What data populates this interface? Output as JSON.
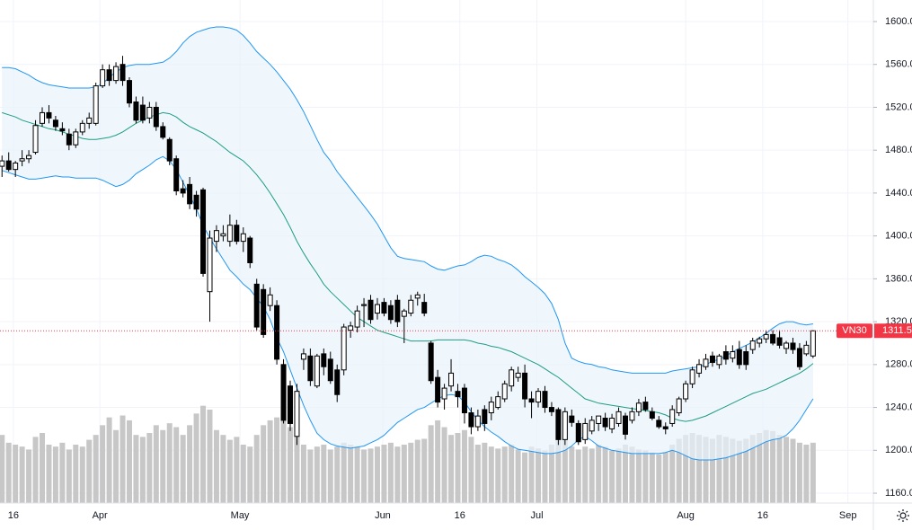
{
  "chart_data": {
    "type": "candlestick",
    "symbol": "VN30",
    "up_color": "#ffffff",
    "down_color": "#000000",
    "wick_color": "#000000",
    "volume_color": "#c7c7c7",
    "grid": true,
    "ylim": [
      1150.8,
      1620.1
    ],
    "yticks": [
      {
        "value": 1160,
        "label": "1160.0"
      },
      {
        "value": 1200,
        "label": "1200.0"
      },
      {
        "value": 1240,
        "label": "1240.0"
      },
      {
        "value": 1280,
        "label": "1280.0"
      },
      {
        "value": 1320,
        "label": "1320.0"
      },
      {
        "value": 1360,
        "label": "1360.0"
      },
      {
        "value": 1400,
        "label": "1400.0"
      },
      {
        "value": 1440,
        "label": "1440.0"
      },
      {
        "value": 1480,
        "label": "1480.0"
      },
      {
        "value": 1520,
        "label": "1520.0"
      },
      {
        "value": 1560,
        "label": "1560.0"
      },
      {
        "value": 1600,
        "label": "1600.0"
      }
    ],
    "xlim": [
      -0.3,
      130
    ],
    "xticks": [
      {
        "value": 1.7,
        "label": "16"
      },
      {
        "value": 14.6,
        "label": "Apr"
      },
      {
        "value": 35.5,
        "label": "May"
      },
      {
        "value": 56.8,
        "label": "Jun"
      },
      {
        "value": 68.3,
        "label": "16"
      },
      {
        "value": 79.8,
        "label": "Jul"
      },
      {
        "value": 102,
        "label": "Aug"
      },
      {
        "value": 113.5,
        "label": "16"
      },
      {
        "value": 126.2,
        "label": "Sep"
      }
    ],
    "open": [
      1465,
      1470,
      1462,
      1470,
      1472,
      1478,
      1505,
      1515,
      1508,
      1500,
      1495,
      1485,
      1497,
      1505,
      1505,
      1540,
      1555,
      1545,
      1560,
      1545,
      1525,
      1522,
      1510,
      1520,
      1502,
      1490,
      1472,
      1444,
      1448,
      1438,
      1443,
      1348,
      1395,
      1400,
      1395,
      1410,
      1395,
      1398,
      1355,
      1350,
      1335,
      1335,
      1280,
      1260,
      1213,
      1285,
      1288,
      1260,
      1290,
      1285,
      1275,
      1275,
      1312,
      1315,
      1335,
      1340,
      1328,
      1338,
      1335,
      1340,
      1325,
      1328,
      1342,
      1338,
      1300,
      1268,
      1248,
      1260,
      1255,
      1258,
      1235,
      1222,
      1238,
      1235,
      1240,
      1248,
      1260,
      1268,
      1272,
      1248,
      1245,
      1255,
      1240,
      1238,
      1210,
      1232,
      1225,
      1210,
      1218,
      1225,
      1230,
      1220,
      1225,
      1232,
      1228,
      1236,
      1245,
      1236,
      1228,
      1222,
      1225,
      1235,
      1248,
      1262,
      1272,
      1278,
      1288,
      1280,
      1292,
      1286,
      1294,
      1292,
      1294,
      1300,
      1304,
      1308,
      1305,
      1295,
      1300,
      1295,
      1290,
      1288
    ],
    "high": [
      1475,
      1478,
      1470,
      1480,
      1480,
      1508,
      1520,
      1522,
      1512,
      1506,
      1500,
      1500,
      1508,
      1515,
      1543,
      1560,
      1560,
      1562,
      1568,
      1548,
      1530,
      1530,
      1525,
      1525,
      1506,
      1492,
      1475,
      1452,
      1455,
      1442,
      1445,
      1405,
      1410,
      1410,
      1420,
      1415,
      1408,
      1400,
      1360,
      1355,
      1352,
      1340,
      1285,
      1265,
      1262,
      1295,
      1295,
      1290,
      1295,
      1292,
      1280,
      1318,
      1320,
      1335,
      1342,
      1345,
      1342,
      1342,
      1340,
      1345,
      1332,
      1345,
      1348,
      1346,
      1302,
      1275,
      1262,
      1285,
      1262,
      1262,
      1240,
      1238,
      1242,
      1250,
      1255,
      1265,
      1278,
      1278,
      1280,
      1255,
      1258,
      1260,
      1245,
      1240,
      1240,
      1238,
      1228,
      1230,
      1232,
      1232,
      1235,
      1234,
      1240,
      1235,
      1240,
      1248,
      1250,
      1240,
      1232,
      1226,
      1242,
      1250,
      1265,
      1278,
      1285,
      1290,
      1292,
      1290,
      1298,
      1298,
      1302,
      1298,
      1305,
      1306,
      1312,
      1312,
      1312,
      1302,
      1305,
      1300,
      1302,
      1312
    ],
    "low": [
      1455,
      1460,
      1455,
      1465,
      1468,
      1476,
      1502,
      1505,
      1498,
      1494,
      1480,
      1482,
      1494,
      1500,
      1503,
      1538,
      1540,
      1542,
      1540,
      1520,
      1505,
      1505,
      1505,
      1498,
      1490,
      1466,
      1438,
      1436,
      1425,
      1418,
      1362,
      1320,
      1385,
      1395,
      1390,
      1392,
      1385,
      1370,
      1312,
      1305,
      1330,
      1280,
      1225,
      1218,
      1205,
      1275,
      1260,
      1258,
      1270,
      1262,
      1245,
      1270,
      1305,
      1310,
      1315,
      1318,
      1322,
      1325,
      1318,
      1315,
      1300,
      1325,
      1335,
      1325,
      1262,
      1240,
      1238,
      1255,
      1240,
      1225,
      1215,
      1218,
      1218,
      1228,
      1238,
      1245,
      1255,
      1264,
      1240,
      1230,
      1240,
      1235,
      1232,
      1205,
      1205,
      1222,
      1205,
      1206,
      1215,
      1218,
      1218,
      1216,
      1222,
      1210,
      1225,
      1232,
      1236,
      1228,
      1220,
      1215,
      1222,
      1232,
      1245,
      1258,
      1268,
      1275,
      1278,
      1276,
      1280,
      1282,
      1276,
      1275,
      1290,
      1296,
      1300,
      1298,
      1295,
      1290,
      1290,
      1275,
      1288,
      1286
    ],
    "close": [
      1470,
      1462,
      1468,
      1472,
      1475,
      1503,
      1515,
      1510,
      1502,
      1498,
      1485,
      1497,
      1505,
      1510,
      1540,
      1555,
      1545,
      1558,
      1545,
      1524,
      1508,
      1508,
      1520,
      1502,
      1492,
      1470,
      1442,
      1440,
      1430,
      1425,
      1365,
      1398,
      1405,
      1402,
      1410,
      1395,
      1402,
      1375,
      1315,
      1308,
      1345,
      1285,
      1228,
      1225,
      1255,
      1290,
      1265,
      1288,
      1278,
      1265,
      1252,
      1315,
      1316,
      1330,
      1336,
      1322,
      1336,
      1328,
      1322,
      1320,
      1330,
      1340,
      1345,
      1328,
      1265,
      1245,
      1258,
      1272,
      1250,
      1235,
      1222,
      1232,
      1225,
      1245,
      1250,
      1262,
      1275,
      1272,
      1248,
      1245,
      1255,
      1240,
      1236,
      1210,
      1236,
      1226,
      1208,
      1225,
      1228,
      1232,
      1222,
      1230,
      1236,
      1215,
      1236,
      1244,
      1238,
      1230,
      1222,
      1220,
      1238,
      1248,
      1262,
      1275,
      1280,
      1285,
      1282,
      1288,
      1285,
      1292,
      1280,
      1280,
      1302,
      1304,
      1308,
      1300,
      1298,
      1300,
      1294,
      1278,
      1298,
      1311.5
    ],
    "volume": [
      70,
      62,
      60,
      58,
      55,
      68,
      72,
      60,
      58,
      62,
      55,
      60,
      58,
      65,
      70,
      80,
      88,
      75,
      90,
      85,
      70,
      68,
      72,
      80,
      75,
      82,
      78,
      70,
      80,
      92,
      100,
      96,
      75,
      70,
      65,
      68,
      60,
      58,
      70,
      80,
      85,
      88,
      90,
      78,
      70,
      60,
      55,
      58,
      60,
      55,
      58,
      62,
      60,
      58,
      55,
      56,
      58,
      60,
      62,
      58,
      60,
      62,
      65,
      66,
      80,
      85,
      78,
      70,
      72,
      75,
      68,
      60,
      62,
      58,
      56,
      58,
      60,
      55,
      52,
      58,
      56,
      54,
      60,
      65,
      70,
      58,
      55,
      58,
      56,
      60,
      58,
      54,
      56,
      60,
      58,
      55,
      54,
      52,
      50,
      52,
      60,
      66,
      70,
      72,
      70,
      68,
      66,
      70,
      68,
      66,
      64,
      66,
      70,
      72,
      75,
      74,
      70,
      68,
      66,
      62,
      60,
      62
    ],
    "volume_max": 120,
    "bands": {
      "fill": "#e8f2fb",
      "upper": {
        "color": "#2196f3",
        "values": [
          1557,
          1557,
          1556,
          1553,
          1550,
          1546,
          1543,
          1541,
          1540,
          1539,
          1538,
          1538,
          1538,
          1538,
          1539,
          1542,
          1548,
          1553,
          1557,
          1559,
          1560,
          1560,
          1560,
          1561,
          1562,
          1566,
          1572,
          1580,
          1586,
          1590,
          1592,
          1594,
          1595,
          1595,
          1594,
          1592,
          1587,
          1580,
          1572,
          1566,
          1560,
          1553,
          1545,
          1537,
          1527,
          1516,
          1503,
          1490,
          1478,
          1470,
          1460,
          1452,
          1444,
          1436,
          1428,
          1420,
          1411,
          1400,
          1389,
          1381,
          1379,
          1378,
          1377,
          1376,
          1372,
          1369,
          1368,
          1370,
          1372,
          1373,
          1376,
          1380,
          1382,
          1381,
          1378,
          1376,
          1373,
          1368,
          1362,
          1357,
          1352,
          1346,
          1337,
          1322,
          1300,
          1286,
          1283,
          1281,
          1280,
          1278,
          1277,
          1275,
          1274,
          1273,
          1272,
          1272,
          1272,
          1272,
          1272,
          1272,
          1274,
          1275,
          1276,
          1277,
          1278,
          1280,
          1283,
          1285,
          1288,
          1292,
          1295,
          1298,
          1301,
          1305,
          1309,
          1314,
          1318,
          1320,
          1320,
          1318,
          1317,
          1318
        ]
      },
      "middle": {
        "color": "#1e9d82",
        "values": [
          1515,
          1513,
          1511,
          1508,
          1506,
          1504,
          1502,
          1500,
          1499,
          1497,
          1495,
          1493,
          1491,
          1490,
          1490,
          1491,
          1492,
          1494,
          1497,
          1501,
          1505,
          1508,
          1511,
          1513,
          1515,
          1514,
          1511,
          1506,
          1502,
          1499,
          1496,
          1492,
          1488,
          1483,
          1478,
          1474,
          1470,
          1464,
          1457,
          1449,
          1440,
          1430,
          1420,
          1408,
          1395,
          1384,
          1374,
          1365,
          1355,
          1348,
          1342,
          1336,
          1330,
          1324,
          1320,
          1316,
          1312,
          1310,
          1308,
          1306,
          1304,
          1302,
          1302,
          1302,
          1302,
          1303,
          1303,
          1303,
          1303,
          1303,
          1302,
          1300,
          1299,
          1297,
          1296,
          1294,
          1292,
          1289,
          1286,
          1283,
          1280,
          1276,
          1272,
          1268,
          1263,
          1258,
          1253,
          1248,
          1246,
          1244,
          1243,
          1242,
          1241,
          1240,
          1239,
          1238,
          1237,
          1236,
          1235,
          1233,
          1230,
          1228,
          1227,
          1228,
          1230,
          1232,
          1235,
          1238,
          1241,
          1244,
          1247,
          1250,
          1253,
          1255,
          1257,
          1260,
          1263,
          1266,
          1269,
          1272,
          1276,
          1281
        ]
      },
      "lower": {
        "color": "#2196f3",
        "values": [
          1461,
          1459,
          1457,
          1455,
          1453,
          1453,
          1454,
          1455,
          1456,
          1455,
          1455,
          1454,
          1454,
          1454,
          1454,
          1452,
          1449,
          1446,
          1448,
          1452,
          1458,
          1462,
          1466,
          1471,
          1474,
          1470,
          1462,
          1450,
          1438,
          1425,
          1410,
          1398,
          1388,
          1378,
          1368,
          1362,
          1355,
          1350,
          1342,
          1334,
          1322,
          1305,
          1292,
          1275,
          1258,
          1242,
          1228,
          1216,
          1210,
          1206,
          1204,
          1203,
          1202,
          1203,
          1204,
          1207,
          1210,
          1214,
          1220,
          1226,
          1230,
          1234,
          1238,
          1240,
          1244,
          1248,
          1251,
          1252,
          1251,
          1245,
          1236,
          1228,
          1222,
          1217,
          1213,
          1208,
          1204,
          1201,
          1200,
          1199,
          1198,
          1197,
          1197,
          1198,
          1200,
          1204,
          1210,
          1213,
          1209,
          1204,
          1202,
          1200,
          1199,
          1198,
          1197,
          1197,
          1197,
          1197,
          1197,
          1198,
          1200,
          1198,
          1195,
          1192,
          1191,
          1191,
          1191,
          1192,
          1193,
          1195,
          1197,
          1199,
          1202,
          1205,
          1208,
          1210,
          1211,
          1214,
          1220,
          1228,
          1238,
          1248
        ]
      }
    },
    "last_color": "#f23645"
  }
}
